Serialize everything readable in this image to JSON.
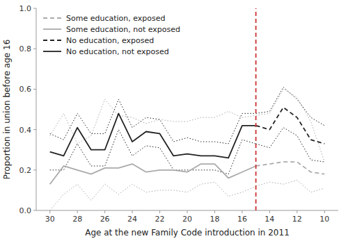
{
  "chart_data": {
    "type": "line",
    "x": [
      30,
      29,
      28,
      27,
      26,
      25,
      24,
      23,
      22,
      21,
      20,
      19,
      18,
      17,
      16,
      15,
      14,
      13,
      12,
      11,
      10
    ],
    "series": [
      {
        "name": "Some education, exposed",
        "color": "#aaaaaa",
        "line_style": "dashed",
        "values": [
          null,
          null,
          null,
          null,
          null,
          null,
          null,
          null,
          null,
          null,
          null,
          null,
          null,
          null,
          null,
          0.22,
          0.23,
          0.24,
          0.24,
          0.19,
          0.18
        ],
        "lower": [
          null,
          null,
          null,
          null,
          null,
          null,
          null,
          null,
          null,
          null,
          null,
          null,
          null,
          null,
          null,
          0.12,
          0.14,
          0.13,
          0.15,
          0.09,
          0.11
        ],
        "upper": [
          null,
          null,
          null,
          null,
          null,
          null,
          null,
          null,
          null,
          null,
          null,
          null,
          null,
          null,
          null,
          0.47,
          0.48,
          0.6,
          0.56,
          0.44,
          0.24
        ]
      },
      {
        "name": "Some education, not exposed",
        "color": "#aaaaaa",
        "line_style": "solid",
        "values": [
          0.13,
          0.22,
          0.2,
          0.18,
          0.21,
          0.21,
          0.23,
          0.19,
          0.2,
          0.2,
          0.19,
          0.23,
          0.23,
          0.16,
          0.19,
          0.22,
          null,
          null,
          null,
          null,
          null
        ],
        "lower": [
          0.0,
          0.08,
          0.13,
          0.05,
          0.13,
          0.08,
          0.13,
          0.09,
          0.1,
          0.1,
          0.09,
          0.13,
          0.14,
          0.07,
          0.09,
          0.12,
          null,
          null,
          null,
          null,
          null
        ],
        "upper": [
          0.37,
          0.48,
          0.33,
          0.37,
          0.55,
          0.47,
          0.46,
          0.43,
          0.45,
          0.44,
          0.44,
          0.46,
          0.46,
          0.49,
          0.46,
          0.47,
          null,
          null,
          null,
          null,
          null
        ]
      },
      {
        "name": "No education, exposed",
        "color": "#222222",
        "line_style": "dashed",
        "values": [
          null,
          null,
          null,
          null,
          null,
          null,
          null,
          null,
          null,
          null,
          null,
          null,
          null,
          null,
          null,
          0.42,
          0.4,
          0.51,
          0.46,
          0.35,
          0.33
        ],
        "lower": [
          null,
          null,
          null,
          null,
          null,
          null,
          null,
          null,
          null,
          null,
          null,
          null,
          null,
          null,
          null,
          0.33,
          0.31,
          0.41,
          0.37,
          0.25,
          0.24
        ],
        "upper": [
          null,
          null,
          null,
          null,
          null,
          null,
          null,
          null,
          null,
          null,
          null,
          null,
          null,
          null,
          null,
          0.48,
          0.49,
          0.61,
          0.55,
          0.46,
          0.42
        ]
      },
      {
        "name": "No education, not exposed",
        "color": "#222222",
        "line_style": "solid",
        "values": [
          0.29,
          0.27,
          0.41,
          0.3,
          0.3,
          0.48,
          0.34,
          0.39,
          0.38,
          0.27,
          0.28,
          0.27,
          0.27,
          0.26,
          0.42,
          0.42,
          null,
          null,
          null,
          null,
          null
        ],
        "lower": [
          0.2,
          0.2,
          0.33,
          0.22,
          0.22,
          0.4,
          0.27,
          0.32,
          0.31,
          0.2,
          0.2,
          0.2,
          0.2,
          0.18,
          0.35,
          0.33,
          null,
          null,
          null,
          null,
          null
        ],
        "upper": [
          0.38,
          0.35,
          0.48,
          0.38,
          0.38,
          0.55,
          0.41,
          0.46,
          0.45,
          0.34,
          0.36,
          0.34,
          0.34,
          0.33,
          0.48,
          0.48,
          null,
          null,
          null,
          null,
          null
        ]
      }
    ],
    "reference_lines": [
      {
        "x": 15,
        "color": "#cc3333",
        "line_style": "dashed"
      }
    ],
    "xlabel": "Age at the new Family Code introduction in 2011",
    "ylabel": "Proportion in union before age 16",
    "xlim": [
      31,
      9
    ],
    "xticks": [
      30,
      28,
      26,
      24,
      22,
      20,
      18,
      16,
      14,
      12,
      10
    ],
    "ylim": [
      0.0,
      1.0
    ],
    "yticks": [
      {
        "value": 0.0,
        "label": "0.0"
      },
      0.2,
      0.4,
      0.6,
      0.8,
      {
        "value": 1.0,
        "label": "1.0"
      }
    ],
    "grid": false,
    "legend": "upper left"
  }
}
